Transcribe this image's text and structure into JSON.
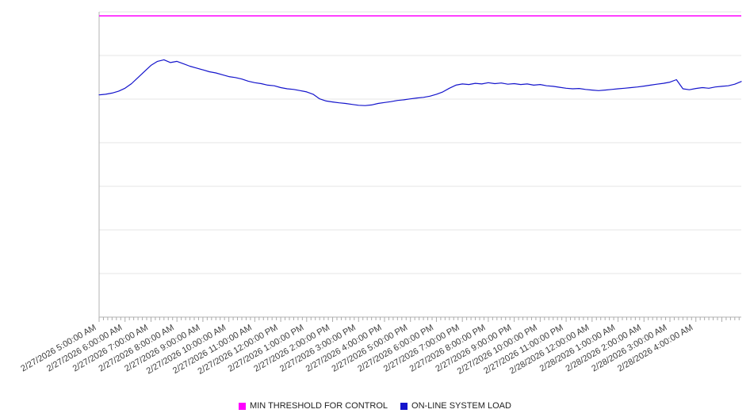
{
  "chart_data": {
    "type": "line",
    "title": "",
    "xlabel": "",
    "ylabel": "",
    "x_hours_span": 24.75,
    "ylim": [
      0,
      100
    ],
    "grid_rows": 7,
    "legend_position": "bottom-center",
    "colors": {
      "grid": "#e6e6e6",
      "axis": "#b3b3b3",
      "tick": "#aaaaaa",
      "label": "#3c3c3c",
      "background": "#ffffff"
    },
    "x_tick_labels": [
      "2/27/2026 5:00:00 AM",
      "2/27/2026 6:00:00 AM",
      "2/27/2026 7:00:00 AM",
      "2/27/2026 8:00:00 AM",
      "2/27/2026 9:00:00 AM",
      "2/27/2026 10:00:00 AM",
      "2/27/2026 11:00:00 AM",
      "2/27/2026 12:00:00 PM",
      "2/27/2026 1:00:00 PM",
      "2/27/2026 2:00:00 PM",
      "2/27/2026 3:00:00 PM",
      "2/27/2026 4:00:00 PM",
      "2/27/2026 5:00:00 PM",
      "2/27/2026 6:00:00 PM",
      "2/27/2026 7:00:00 PM",
      "2/27/2026 8:00:00 PM",
      "2/27/2026 9:00:00 PM",
      "2/27/2026 10:00:00 PM",
      "2/27/2026 11:00:00 PM",
      "2/28/2026 12:00:00 AM",
      "2/28/2026 1:00:00 AM",
      "2/28/2026 2:00:00 AM",
      "2/28/2026 3:00:00 AM",
      "2/28/2026 4:00:00 AM"
    ],
    "series": [
      {
        "name": "MIN THRESHOLD FOR CONTROL",
        "color": "#ff00ff",
        "kind": "threshold",
        "value": 98.7
      },
      {
        "name": "ON-LINE SYSTEM LOAD",
        "color": "#1414cc",
        "kind": "line",
        "points": [
          [
            0,
            72.8
          ],
          [
            0.25,
            73.0
          ],
          [
            0.5,
            73.4
          ],
          [
            0.75,
            74.0
          ],
          [
            1,
            75.0
          ],
          [
            1.25,
            76.5
          ],
          [
            1.5,
            78.5
          ],
          [
            1.75,
            80.5
          ],
          [
            2,
            82.5
          ],
          [
            2.25,
            83.8
          ],
          [
            2.5,
            84.3
          ],
          [
            2.75,
            83.4
          ],
          [
            3,
            83.8
          ],
          [
            3.25,
            83.0
          ],
          [
            3.5,
            82.2
          ],
          [
            3.75,
            81.6
          ],
          [
            4,
            81.0
          ],
          [
            4.25,
            80.4
          ],
          [
            4.5,
            80.0
          ],
          [
            4.75,
            79.4
          ],
          [
            5,
            78.8
          ],
          [
            5.25,
            78.5
          ],
          [
            5.5,
            78.0
          ],
          [
            5.75,
            77.3
          ],
          [
            6,
            76.8
          ],
          [
            6.25,
            76.5
          ],
          [
            6.5,
            76.0
          ],
          [
            6.75,
            75.8
          ],
          [
            7,
            75.2
          ],
          [
            7.25,
            74.8
          ],
          [
            7.5,
            74.6
          ],
          [
            7.75,
            74.2
          ],
          [
            8,
            73.8
          ],
          [
            8.25,
            73.0
          ],
          [
            8.5,
            71.5
          ],
          [
            8.75,
            70.8
          ],
          [
            9,
            70.5
          ],
          [
            9.25,
            70.2
          ],
          [
            9.5,
            70.0
          ],
          [
            9.75,
            69.7
          ],
          [
            10,
            69.4
          ],
          [
            10.25,
            69.3
          ],
          [
            10.5,
            69.5
          ],
          [
            10.75,
            70.0
          ],
          [
            11,
            70.3
          ],
          [
            11.25,
            70.6
          ],
          [
            11.5,
            71.0
          ],
          [
            11.75,
            71.2
          ],
          [
            12,
            71.5
          ],
          [
            12.25,
            71.8
          ],
          [
            12.5,
            72.0
          ],
          [
            12.75,
            72.4
          ],
          [
            13,
            73.0
          ],
          [
            13.25,
            73.8
          ],
          [
            13.5,
            75.0
          ],
          [
            13.75,
            76.0
          ],
          [
            14,
            76.4
          ],
          [
            14.25,
            76.2
          ],
          [
            14.5,
            76.6
          ],
          [
            14.75,
            76.4
          ],
          [
            15,
            76.8
          ],
          [
            15.25,
            76.5
          ],
          [
            15.5,
            76.7
          ],
          [
            15.75,
            76.3
          ],
          [
            16,
            76.5
          ],
          [
            16.25,
            76.2
          ],
          [
            16.5,
            76.4
          ],
          [
            16.75,
            76.0
          ],
          [
            17,
            76.2
          ],
          [
            17.25,
            75.8
          ],
          [
            17.5,
            75.6
          ],
          [
            17.75,
            75.3
          ],
          [
            18,
            75.0
          ],
          [
            18.25,
            74.8
          ],
          [
            18.5,
            74.9
          ],
          [
            18.75,
            74.6
          ],
          [
            19,
            74.4
          ],
          [
            19.25,
            74.2
          ],
          [
            19.5,
            74.4
          ],
          [
            19.75,
            74.6
          ],
          [
            20,
            74.8
          ],
          [
            20.25,
            75.0
          ],
          [
            20.5,
            75.2
          ],
          [
            20.75,
            75.4
          ],
          [
            21,
            75.7
          ],
          [
            21.25,
            76.0
          ],
          [
            21.5,
            76.3
          ],
          [
            21.75,
            76.6
          ],
          [
            22,
            77.0
          ],
          [
            22.25,
            77.8
          ],
          [
            22.5,
            74.8
          ],
          [
            22.75,
            74.5
          ],
          [
            23,
            74.9
          ],
          [
            23.25,
            75.2
          ],
          [
            23.5,
            75.0
          ],
          [
            23.75,
            75.4
          ],
          [
            24,
            75.6
          ],
          [
            24.25,
            75.8
          ],
          [
            24.5,
            76.3
          ],
          [
            24.75,
            77.2
          ]
        ]
      }
    ]
  }
}
